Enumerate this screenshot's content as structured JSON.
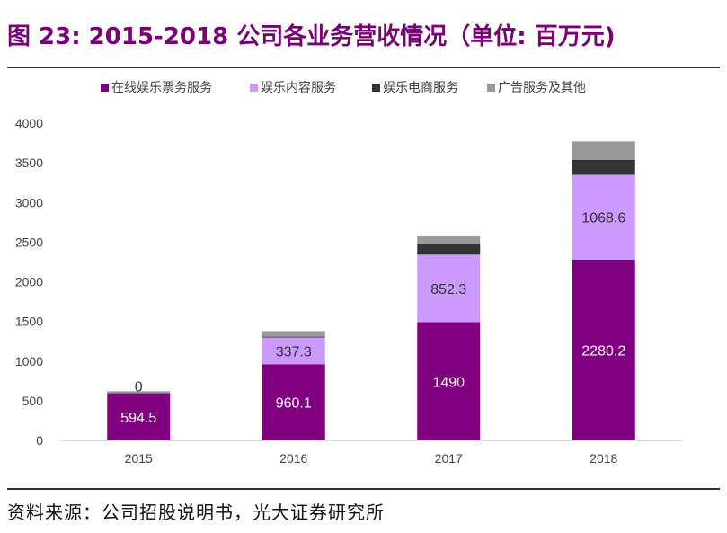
{
  "title": "图 23: 2015-2018 公司各业务营收情况（单位: 百万元)",
  "source": "资料来源：公司招股说明书，光大证券研究所",
  "colors": {
    "title": "#7a0078",
    "axis_text": "#444444",
    "series": [
      "#800080",
      "#cc99ff",
      "#333333",
      "#999999"
    ]
  },
  "chart_data": {
    "type": "bar",
    "stacked": true,
    "categories": [
      "2015",
      "2016",
      "2017",
      "2018"
    ],
    "series": [
      {
        "name": "在线娱乐票务服务",
        "values": [
          594.5,
          960.1,
          1490,
          2280.2
        ],
        "labels": [
          "594.5",
          "960.1",
          "1490",
          "2280.2"
        ]
      },
      {
        "name": "娱乐内容服务",
        "values": [
          0,
          337.3,
          852.3,
          1068.6
        ],
        "labels": [
          "0",
          "337.3",
          "852.3",
          "1068.6"
        ]
      },
      {
        "name": "娱乐电商服务",
        "values": [
          0,
          10,
          130,
          190
        ],
        "labels": []
      },
      {
        "name": "广告服务及其他",
        "values": [
          25,
          70,
          100,
          230
        ],
        "labels": []
      }
    ],
    "ylim": [
      0,
      4000
    ],
    "yticks": [
      0,
      500,
      1000,
      1500,
      2000,
      2500,
      3000,
      3500,
      4000
    ],
    "legend_position": "top",
    "grid": false
  }
}
